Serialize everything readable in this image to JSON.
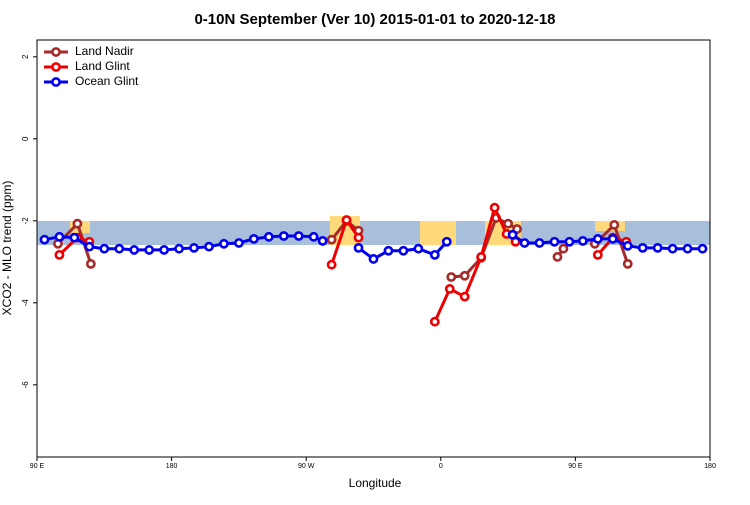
{
  "chart_data": {
    "type": "line",
    "title": "0-10N September (Ver 10)   2015-01-01 to 2020-12-18",
    "x_label": "Longitude",
    "y_label": "XCO2 - MLO trend (ppm)",
    "xlim": [
      90,
      540
    ],
    "ylim": [
      -7.76,
      2.41
    ],
    "xticks": [
      {
        "value": 90,
        "label": "90 E"
      },
      {
        "value": 180,
        "label": "180"
      },
      {
        "value": 270,
        "label": "90 W"
      },
      {
        "value": 360,
        "label": "0"
      },
      {
        "value": 450,
        "label": "90 E"
      },
      {
        "value": 540,
        "label": "180"
      }
    ],
    "yticks": [
      2,
      0,
      -2,
      -4,
      -6
    ],
    "legend": "top-left",
    "series": [
      {
        "name": "Land Nadir",
        "color": "#a52a2a",
        "x": [
          104,
          117,
          126,
          200,
          287,
          297,
          305,
          330,
          367,
          376,
          387,
          397,
          405,
          411,
          425,
          438,
          442,
          450,
          463,
          476,
          485
        ],
        "values": [
          -2.56,
          -2.07,
          -3.05,
          null,
          -2.46,
          -2.0,
          -2.24,
          null,
          -3.37,
          -3.34,
          -2.9,
          -1.93,
          -2.07,
          -2.2,
          null,
          -2.88,
          -2.68,
          null,
          -2.56,
          -2.1,
          -3.05
        ]
      },
      {
        "name": "Land Glint",
        "color": "#ee0000",
        "x": [
          105,
          117,
          125,
          200,
          287,
          297,
          305,
          330,
          356,
          366,
          376,
          387,
          396,
          404,
          410,
          440,
          465,
          475,
          484
        ],
        "values": [
          -2.83,
          -2.41,
          -2.51,
          null,
          -3.07,
          -1.98,
          -2.41,
          null,
          -4.46,
          -3.66,
          -3.85,
          -2.88,
          -1.68,
          -2.32,
          -2.51,
          null,
          -2.83,
          -2.41,
          -2.51
        ]
      },
      {
        "name": "Ocean Glint",
        "color": "#0000ee",
        "x": [
          95,
          105,
          115,
          125,
          135,
          145,
          155,
          165,
          175,
          185,
          195,
          205,
          215,
          225,
          235,
          245,
          255,
          265,
          275,
          281,
          293,
          305,
          315,
          325,
          335,
          345,
          356,
          364,
          386,
          408,
          416,
          426,
          436,
          446,
          455,
          465,
          475,
          485,
          495,
          505,
          515,
          525,
          535
        ],
        "values": [
          -2.46,
          -2.39,
          -2.41,
          -2.63,
          -2.68,
          -2.68,
          -2.71,
          -2.71,
          -2.71,
          -2.68,
          -2.66,
          -2.63,
          -2.56,
          -2.54,
          -2.44,
          -2.39,
          -2.37,
          -2.37,
          -2.39,
          -2.49,
          null,
          -2.66,
          -2.93,
          -2.73,
          -2.73,
          -2.68,
          -2.83,
          -2.51,
          null,
          -2.34,
          -2.54,
          -2.54,
          -2.51,
          -2.51,
          -2.49,
          -2.44,
          -2.44,
          -2.61,
          -2.66,
          -2.66,
          -2.68,
          -2.68,
          -2.68
        ]
      }
    ]
  }
}
